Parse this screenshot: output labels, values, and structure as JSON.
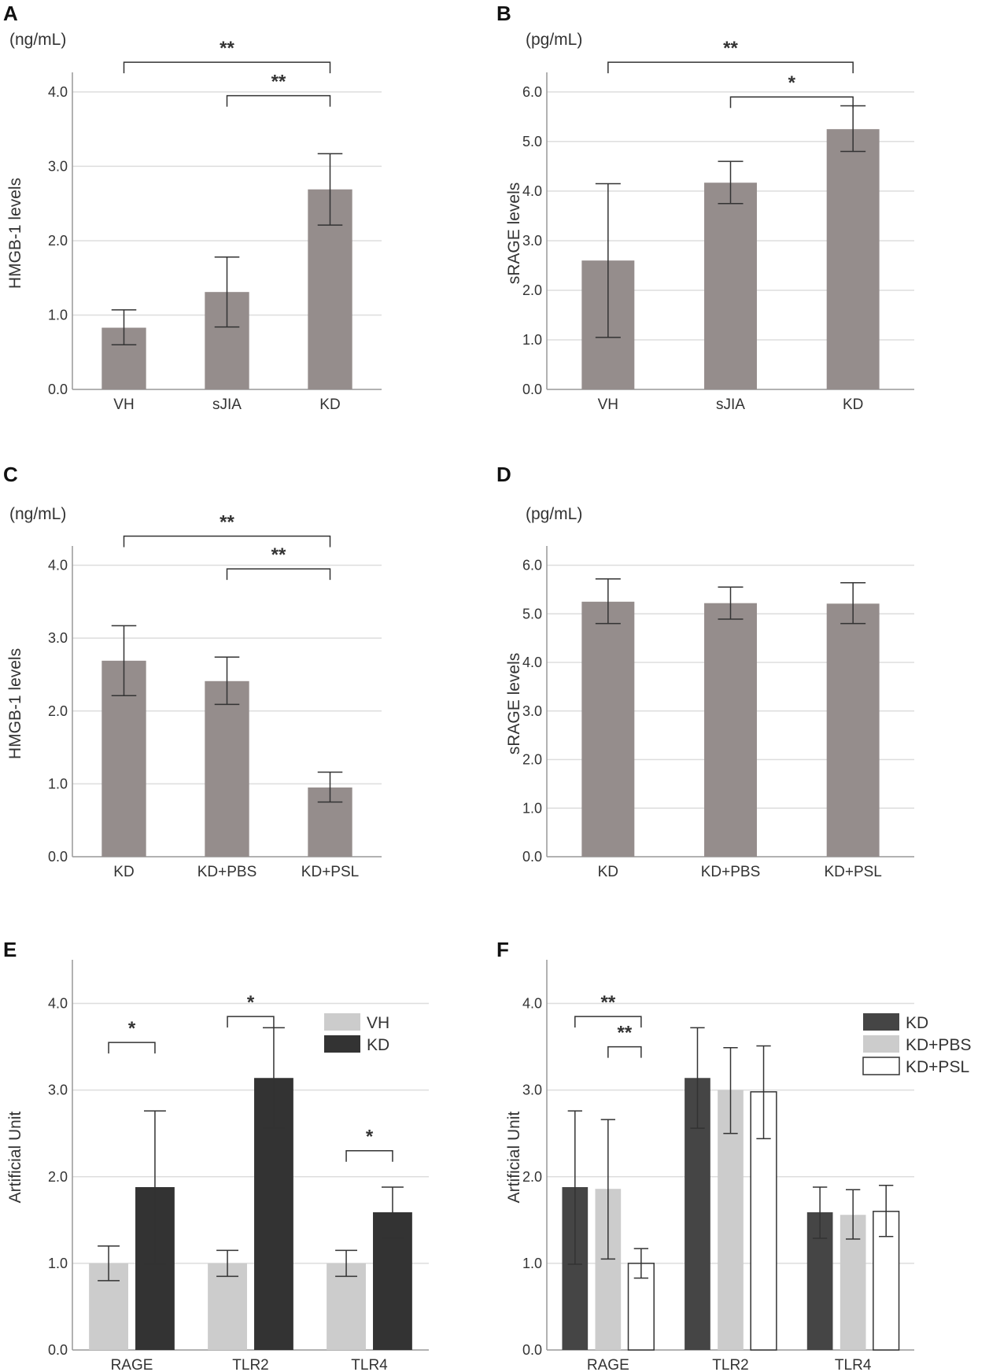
{
  "colors": {
    "gray_bar": "#958d8c",
    "vh_bar": "#cccccc",
    "kd_bar": "#333333",
    "kd_f_bar": "#454545",
    "pbs_bar": "#cccccc",
    "psl_bar": "#ffffff",
    "grid": "#dddddd",
    "axis": "#999999",
    "error": "#333333"
  },
  "chart_data": [
    {
      "id": "A",
      "type": "bar",
      "panel_label": "A",
      "unit": "(ng/mL)",
      "ylabel": "HMGB-1 levels",
      "categories": [
        "VH",
        "sJIA",
        "KD"
      ],
      "series": [
        {
          "name": "",
          "color_key": "gray_bar",
          "values": [
            0.83,
            1.31,
            2.69
          ],
          "err_low": [
            0.6,
            0.84,
            2.21
          ],
          "err_high": [
            1.07,
            1.78,
            3.17
          ]
        }
      ],
      "ylim": [
        0,
        4.2
      ],
      "yticks": [
        "0.0",
        "1.0",
        "2.0",
        "3.0",
        "4.0"
      ],
      "brackets": [
        {
          "from": 0,
          "to": 2,
          "y": 4.4,
          "label": "**"
        },
        {
          "from": 1,
          "to": 2,
          "y": 3.95,
          "label": "**"
        }
      ]
    },
    {
      "id": "B",
      "type": "bar",
      "panel_label": "B",
      "unit": "(pg/mL)",
      "ylabel": "sRAGE levels",
      "categories": [
        "VH",
        "sJIA",
        "KD"
      ],
      "series": [
        {
          "name": "",
          "color_key": "gray_bar",
          "values": [
            2.6,
            4.17,
            5.25
          ],
          "err_low": [
            1.05,
            3.75,
            4.8
          ],
          "err_high": [
            4.15,
            4.6,
            5.72
          ]
        }
      ],
      "ylim": [
        0,
        6.3
      ],
      "yticks": [
        "0.0",
        "1.0",
        "2.0",
        "3.0",
        "4.0",
        "5.0",
        "6.0"
      ],
      "brackets": [
        {
          "from": 0,
          "to": 2,
          "y": 6.6,
          "label": "**"
        },
        {
          "from": 1,
          "to": 2,
          "y": 5.9,
          "label": "*"
        }
      ]
    },
    {
      "id": "C",
      "type": "bar",
      "panel_label": "C",
      "unit": "(ng/mL)",
      "ylabel": "HMGB-1 levels",
      "categories": [
        "KD",
        "KD+PBS",
        "KD+PSL"
      ],
      "series": [
        {
          "name": "",
          "color_key": "gray_bar",
          "values": [
            2.69,
            2.41,
            0.95
          ],
          "err_low": [
            2.21,
            2.09,
            0.75
          ],
          "err_high": [
            3.17,
            2.74,
            1.16
          ]
        }
      ],
      "ylim": [
        0,
        4.2
      ],
      "yticks": [
        "0.0",
        "1.0",
        "2.0",
        "3.0",
        "4.0"
      ],
      "brackets": [
        {
          "from": 0,
          "to": 2,
          "y": 4.4,
          "label": "**"
        },
        {
          "from": 1,
          "to": 2,
          "y": 3.95,
          "label": "**"
        }
      ]
    },
    {
      "id": "D",
      "type": "bar",
      "panel_label": "D",
      "unit": "(pg/mL)",
      "ylabel": "sRAGE levels",
      "categories": [
        "KD",
        "KD+PBS",
        "KD+PSL"
      ],
      "series": [
        {
          "name": "",
          "color_key": "gray_bar",
          "values": [
            5.25,
            5.22,
            5.21
          ],
          "err_low": [
            4.8,
            4.89,
            4.8
          ],
          "err_high": [
            5.72,
            5.55,
            5.64
          ]
        }
      ],
      "ylim": [
        0,
        6.3
      ],
      "yticks": [
        "0.0",
        "1.0",
        "2.0",
        "3.0",
        "4.0",
        "5.0",
        "6.0"
      ],
      "brackets": []
    },
    {
      "id": "E",
      "type": "bar",
      "panel_label": "E",
      "unit": "",
      "ylabel": "Artificial Unit",
      "categories": [
        "RAGE",
        "TLR2",
        "TLR4"
      ],
      "series": [
        {
          "name": "VH",
          "color_key": "vh_bar",
          "values": [
            1.0,
            1.0,
            1.0
          ],
          "err_low": [
            0.8,
            0.85,
            0.85
          ],
          "err_high": [
            1.2,
            1.15,
            1.15
          ]
        },
        {
          "name": "KD",
          "color_key": "kd_bar",
          "values": [
            1.88,
            3.14,
            1.59
          ],
          "err_low": [
            0.99,
            2.56,
            1.29
          ],
          "err_high": [
            2.76,
            3.72,
            1.88
          ]
        }
      ],
      "ylim": [
        0,
        4.45
      ],
      "yticks": [
        "0.0",
        "1.0",
        "2.0",
        "3.0",
        "4.0"
      ],
      "legend": "top-right",
      "brackets": [
        {
          "from_cat": 0,
          "from_series": 0,
          "to_cat": 0,
          "to_series": 1,
          "y": 3.55,
          "label": "*"
        },
        {
          "from_cat": 1,
          "from_series": 0,
          "to_cat": 1,
          "to_series": 1,
          "y": 3.85,
          "label": "*"
        },
        {
          "from_cat": 2,
          "from_series": 0,
          "to_cat": 2,
          "to_series": 1,
          "y": 2.3,
          "label": "*"
        }
      ]
    },
    {
      "id": "F",
      "type": "bar",
      "panel_label": "F",
      "unit": "",
      "ylabel": "Artificial Unit",
      "categories": [
        "RAGE",
        "TLR2",
        "TLR4"
      ],
      "series": [
        {
          "name": "KD",
          "color_key": "kd_f_bar",
          "values": [
            1.88,
            3.14,
            1.59
          ],
          "err_low": [
            0.99,
            2.56,
            1.29
          ],
          "err_high": [
            2.76,
            3.72,
            1.88
          ]
        },
        {
          "name": "KD+PBS",
          "color_key": "pbs_bar",
          "values": [
            1.86,
            3.0,
            1.56
          ],
          "err_low": [
            1.05,
            2.5,
            1.28
          ],
          "err_high": [
            2.66,
            3.49,
            1.85
          ]
        },
        {
          "name": "KD+PSL",
          "color_key": "psl_bar",
          "values": [
            1.0,
            2.98,
            1.6
          ],
          "err_low": [
            0.83,
            2.44,
            1.31
          ],
          "err_high": [
            1.17,
            3.51,
            1.9
          ]
        }
      ],
      "ylim": [
        0,
        4.45
      ],
      "yticks": [
        "0.0",
        "1.0",
        "2.0",
        "3.0",
        "4.0"
      ],
      "legend": "top-right",
      "brackets": [
        {
          "from_cat": 0,
          "from_series": 0,
          "to_cat": 0,
          "to_series": 2,
          "y": 3.85,
          "label": "**"
        },
        {
          "from_cat": 0,
          "from_series": 1,
          "to_cat": 0,
          "to_series": 2,
          "y": 3.5,
          "label": "**"
        }
      ]
    }
  ]
}
